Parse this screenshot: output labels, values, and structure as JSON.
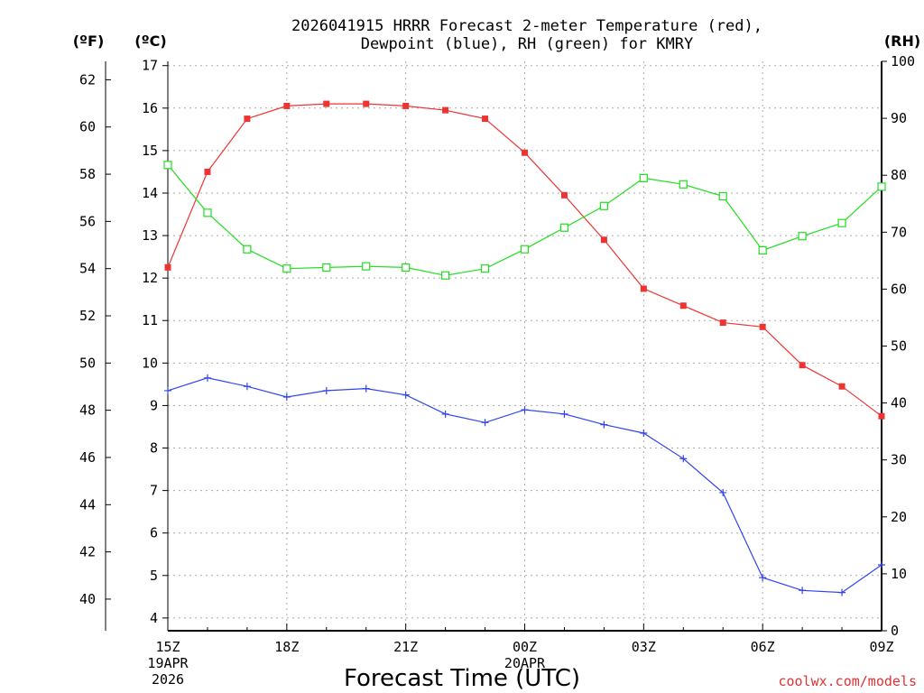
{
  "chart_data": {
    "type": "line",
    "title_lines": [
      "2026041915 HRRR Forecast 2-meter Temperature (red),",
      "Dewpoint (blue), RH (green) for KMRY"
    ],
    "xlabel": "Forecast Time (UTC)",
    "credit": "coolwx.com/models",
    "units": {
      "left_outer": "(ºF)",
      "left_inner": "(ºC)",
      "right": "(RH)"
    },
    "x_hours": [
      0,
      1,
      2,
      3,
      4,
      5,
      6,
      7,
      8,
      9,
      10,
      11,
      12,
      13,
      14,
      15,
      16,
      17,
      18
    ],
    "x_ticks": [
      {
        "hour": 0,
        "label": "15Z",
        "sub": [
          "19APR",
          "2026"
        ]
      },
      {
        "hour": 3,
        "label": "18Z",
        "sub": []
      },
      {
        "hour": 6,
        "label": "21Z",
        "sub": []
      },
      {
        "hour": 9,
        "label": "00Z",
        "sub": [
          "20APR"
        ]
      },
      {
        "hour": 12,
        "label": "03Z",
        "sub": []
      },
      {
        "hour": 15,
        "label": "06Z",
        "sub": []
      },
      {
        "hour": 18,
        "label": "09Z",
        "sub": []
      }
    ],
    "ylim_c": [
      3.7,
      17.1
    ],
    "yticks_c": [
      4,
      5,
      6,
      7,
      8,
      9,
      10,
      11,
      12,
      13,
      14,
      15,
      16,
      17
    ],
    "yticks_f": [
      40,
      42,
      44,
      46,
      48,
      50,
      52,
      54,
      56,
      58,
      60,
      62
    ],
    "ylim_rh": [
      0,
      100
    ],
    "yticks_rh": [
      0,
      10,
      20,
      30,
      40,
      50,
      60,
      70,
      80,
      90,
      100
    ],
    "series": [
      {
        "name": "Temperature",
        "axis": "c",
        "color": "#ee3333",
        "marker": "filled-square",
        "values": [
          12.25,
          14.5,
          15.75,
          16.05,
          16.1,
          16.1,
          16.05,
          15.95,
          15.75,
          14.95,
          13.95,
          12.9,
          11.75,
          11.35,
          10.95,
          10.85,
          9.95,
          9.45,
          8.75
        ]
      },
      {
        "name": "Dewpoint",
        "axis": "c",
        "color": "#3344ee",
        "marker": "plus",
        "values": [
          9.35,
          9.65,
          9.45,
          9.2,
          9.35,
          9.4,
          9.25,
          8.8,
          8.6,
          8.9,
          8.8,
          8.55,
          8.35,
          7.75,
          6.95,
          4.95,
          4.65,
          4.6,
          5.25
        ]
      },
      {
        "name": "Relative Humidity",
        "axis": "rh",
        "color": "#22dd22",
        "marker": "open-square",
        "values": [
          81.8,
          73.4,
          67.0,
          63.6,
          63.8,
          64.0,
          63.8,
          62.4,
          63.6,
          67.0,
          70.8,
          74.6,
          79.5,
          78.4,
          76.3,
          66.8,
          69.3,
          71.6,
          78.0
        ]
      }
    ]
  }
}
